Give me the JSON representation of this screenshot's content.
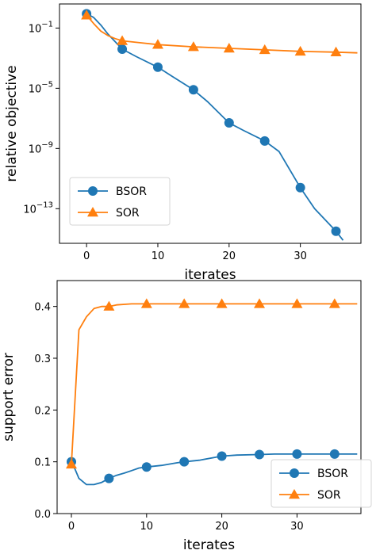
{
  "chart_data": [
    {
      "type": "line",
      "xlabel": "iterates",
      "ylabel": "relative objective",
      "yscale": "log",
      "xlim": [
        -3.8,
        38.5
      ],
      "ylim_log10": [
        -15.3,
        0.6
      ],
      "xticks": [
        0,
        10,
        20,
        30
      ],
      "xtick_labels": [
        "0",
        "10",
        "20",
        "30"
      ],
      "yticks_log10": [
        -1,
        -5,
        -9,
        -13
      ],
      "ytick_labels": [
        {
          "base": "10",
          "exp": "−1"
        },
        {
          "base": "10",
          "exp": "−5"
        },
        {
          "base": "10",
          "exp": "−9"
        },
        {
          "base": "10",
          "exp": "−13"
        }
      ],
      "grid": false,
      "legend_position": "bottom-left",
      "series": [
        {
          "name": "BSOR",
          "color": "#1f77b4",
          "marker": "circle",
          "x_line": [
            0,
            1,
            2,
            3,
            4,
            5,
            7,
            10,
            12,
            15,
            17,
            20,
            22,
            25,
            27,
            30,
            32,
            35,
            36
          ],
          "y_line_log10": [
            -0.05,
            -0.3,
            -0.8,
            -1.4,
            -1.9,
            -2.4,
            -2.9,
            -3.6,
            -4.2,
            -5.1,
            -5.9,
            -7.3,
            -7.8,
            -8.5,
            -9.2,
            -11.6,
            -13.0,
            -14.5,
            -15.1
          ],
          "x_markers": [
            0,
            5,
            10,
            15,
            20,
            25,
            30,
            35
          ],
          "y_markers_log10": [
            -0.05,
            -2.4,
            -3.6,
            -5.1,
            -7.3,
            -8.5,
            -11.6,
            -14.5
          ]
        },
        {
          "name": "SOR",
          "color": "#ff7f0e",
          "marker": "triangle",
          "x_line": [
            0,
            1,
            2,
            3,
            4,
            5,
            8,
            10,
            15,
            20,
            25,
            30,
            35,
            38
          ],
          "y_line_log10": [
            -0.15,
            -0.7,
            -1.2,
            -1.5,
            -1.7,
            -1.85,
            -2.0,
            -2.1,
            -2.25,
            -2.35,
            -2.45,
            -2.55,
            -2.6,
            -2.65
          ],
          "x_markers": [
            0,
            5,
            10,
            15,
            20,
            25,
            30,
            35
          ],
          "y_markers_log10": [
            -0.15,
            -1.85,
            -2.1,
            -2.25,
            -2.35,
            -2.45,
            -2.55,
            -2.6
          ]
        }
      ]
    },
    {
      "type": "line",
      "xlabel": "iterates",
      "ylabel": "support error",
      "yscale": "linear",
      "xlim": [
        -1.9,
        38.5
      ],
      "ylim": [
        0.0,
        0.45
      ],
      "xticks": [
        0,
        10,
        20,
        30
      ],
      "xtick_labels": [
        "0",
        "10",
        "20",
        "30"
      ],
      "yticks": [
        0.0,
        0.1,
        0.2,
        0.3,
        0.4
      ],
      "ytick_labels": [
        "0.0",
        "0.1",
        "0.2",
        "0.3",
        "0.4"
      ],
      "grid": false,
      "legend_position": "bottom-right",
      "series": [
        {
          "name": "BSOR",
          "color": "#1f77b4",
          "marker": "circle",
          "x_line": [
            0,
            0.5,
            1,
            2,
            3,
            4,
            5,
            6,
            7,
            8,
            9,
            10,
            12,
            14,
            15,
            17,
            20,
            22,
            25,
            27,
            30,
            35,
            38
          ],
          "y_line": [
            0.1,
            0.085,
            0.068,
            0.056,
            0.056,
            0.06,
            0.068,
            0.074,
            0.078,
            0.083,
            0.088,
            0.09,
            0.093,
            0.098,
            0.1,
            0.103,
            0.111,
            0.113,
            0.114,
            0.115,
            0.115,
            0.115,
            0.115
          ],
          "x_markers": [
            0,
            5,
            10,
            15,
            20,
            25,
            30,
            35
          ],
          "y_markers": [
            0.1,
            0.068,
            0.09,
            0.1,
            0.111,
            0.114,
            0.115,
            0.115
          ]
        },
        {
          "name": "SOR",
          "color": "#ff7f0e",
          "marker": "triangle",
          "x_line": [
            0,
            1,
            2,
            3,
            4,
            5,
            6,
            8,
            10,
            15,
            20,
            25,
            30,
            35,
            38
          ],
          "y_line": [
            0.095,
            0.355,
            0.38,
            0.396,
            0.4,
            0.4,
            0.403,
            0.405,
            0.405,
            0.405,
            0.405,
            0.405,
            0.405,
            0.405,
            0.405
          ],
          "x_markers": [
            0,
            5,
            10,
            15,
            20,
            25,
            30,
            35
          ],
          "y_markers": [
            0.095,
            0.4,
            0.405,
            0.405,
            0.405,
            0.405,
            0.405,
            0.405
          ]
        }
      ]
    }
  ]
}
